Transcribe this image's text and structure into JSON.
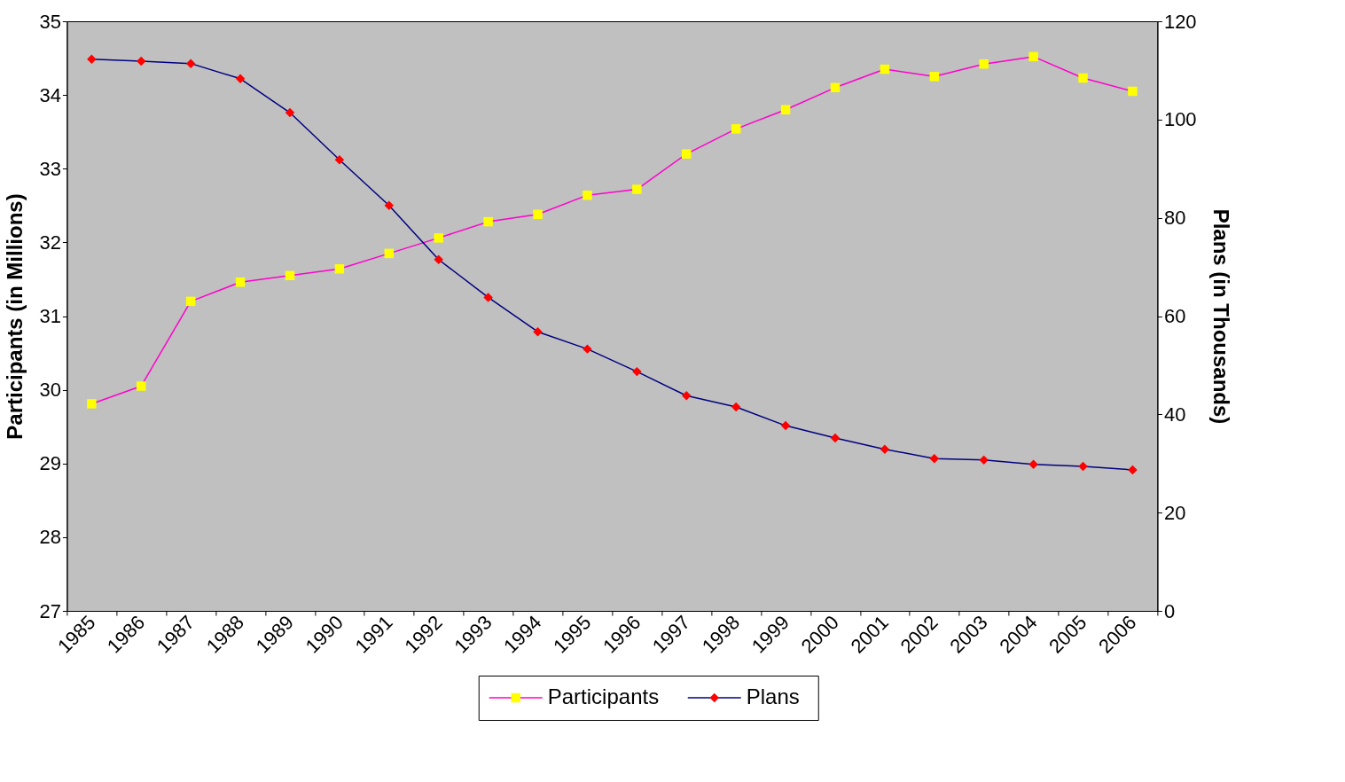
{
  "chart_data": {
    "type": "line",
    "ylabel": "Participants (in Millions)",
    "y2label": "Plans (in Thousands)",
    "categories": [
      "1985",
      "1986",
      "1987",
      "1988",
      "1989",
      "1990",
      "1991",
      "1992",
      "1993",
      "1994",
      "1995",
      "1996",
      "1997",
      "1998",
      "1999",
      "2000",
      "2001",
      "2002",
      "2003",
      "2004",
      "2005",
      "2006"
    ],
    "ylim": [
      27,
      35
    ],
    "yticks": [
      27,
      28,
      29,
      30,
      31,
      32,
      33,
      34,
      35
    ],
    "y2lim": [
      0,
      120
    ],
    "y2ticks": [
      0,
      20,
      40,
      60,
      80,
      100,
      120
    ],
    "grid": false,
    "legend": "bottom",
    "series": [
      {
        "name": "Participants",
        "color": "#ff00cc",
        "marker": "square",
        "colors": [
          "#ffff00",
          "#ffff00",
          "#ffff00",
          "#ffff00",
          "#ffff00",
          "#ffff00",
          "#ffff00",
          "#ffff00",
          "#ffff00",
          "#ffff00",
          "#ffff00",
          "#ffff00",
          "#ffff00",
          "#ffff00",
          "#ffff00",
          "#ffff00",
          "#ffff00",
          "#ffff00",
          "#ffff00",
          "#ffff00",
          "#ffff00",
          "#ffff00"
        ],
        "values": [
          29.81,
          30.05,
          31.2,
          31.46,
          31.55,
          31.64,
          31.85,
          32.06,
          32.28,
          32.38,
          32.64,
          32.72,
          33.2,
          33.54,
          33.8,
          34.1,
          34.35,
          34.25,
          34.42,
          34.52,
          34.23,
          34.05
        ]
      },
      {
        "name": "Plans",
        "color": "#000080",
        "marker": "diamond",
        "axis": "y2",
        "colors": [
          "#ff0000",
          "#ff0000",
          "#ff0000",
          "#ff0000",
          "#ff0000",
          "#ff0000",
          "#ff0000",
          "#ff0000",
          "#ff0000",
          "#ff0000",
          "#ff0000",
          "#ff0000",
          "#ff0000",
          "#ff0000",
          "#ff0000",
          "#ff0000",
          "#ff0000",
          "#ff0000",
          "#ff0000",
          "#ff0000",
          "#ff0000",
          "#ff0000"
        ],
        "values": [
          112.3,
          111.9,
          111.4,
          108.3,
          101.4,
          91.8,
          82.5,
          71.5,
          63.8,
          56.8,
          53.3,
          48.7,
          43.8,
          41.5,
          37.7,
          35.2,
          32.9,
          31.0,
          30.7,
          29.8,
          29.4,
          28.7
        ]
      }
    ]
  }
}
